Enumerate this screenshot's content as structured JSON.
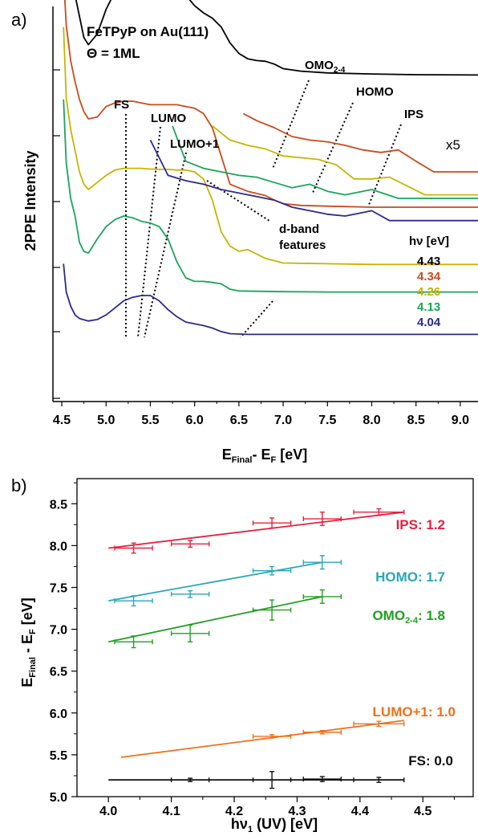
{
  "panel_a": {
    "panel_label": "a)",
    "sample_line1": "FeTPyP on Au(111)",
    "sample_line2": "Θ = 1ML",
    "ylabel": "2PPE Intensity",
    "xlabel_main": "E",
    "xlabel_sub1": "Final",
    "xlabel_mid": "- E",
    "xlabel_sub2": "F",
    "xlabel_unit": " [eV]",
    "x_ticks": [
      "4.5",
      "5.0",
      "5.5",
      "6.0",
      "6.5",
      "7.0",
      "7.5",
      "8.0",
      "8.5",
      "9.0"
    ],
    "labels": {
      "fs": "FS",
      "lumo": "LUMO",
      "lumo1": "LUMO+1",
      "omo_main": "OMO",
      "omo_sub": "2-4",
      "homo": "HOMO",
      "ips": "IPS",
      "x5": "x5",
      "dband1": "d-band",
      "dband2": "features"
    },
    "legend_title": "hν [eV]",
    "legend": [
      {
        "label": "4.43",
        "color": "#000000"
      },
      {
        "label": "4.34",
        "color": "#cc4a1a"
      },
      {
        "label": "4.26",
        "color": "#c8b400"
      },
      {
        "label": "4.13",
        "color": "#1aa55a"
      },
      {
        "label": "4.04",
        "color": "#2a2a8c"
      }
    ]
  },
  "chart_data": [
    {
      "type": "line",
      "panel": "a",
      "xlabel": "E_Final - E_F [eV]",
      "ylabel": "2PPE Intensity",
      "xlim": [
        4.4,
        9.2
      ],
      "series": [
        {
          "name": "4.43",
          "color": "#000000",
          "offset": 4,
          "x": [
            4.52,
            4.55,
            4.6,
            4.65,
            4.7,
            4.75,
            4.8,
            4.9,
            5.0,
            5.1,
            5.2,
            5.3,
            5.4,
            5.5,
            5.6,
            5.7,
            5.8,
            5.9,
            6.0,
            6.1,
            6.2,
            6.3,
            6.4,
            6.5,
            6.6,
            6.7,
            6.8,
            6.9,
            7.0,
            7.2,
            7.5,
            8.0,
            8.5,
            9.2
          ],
          "y": [
            3.6,
            4.2,
            3.0,
            2.2,
            1.6,
            1.0,
            0.8,
            1.1,
            1.8,
            2.3,
            2.6,
            2.7,
            2.65,
            2.55,
            2.4,
            2.35,
            2.3,
            2.2,
            1.9,
            1.7,
            1.55,
            1.3,
            0.85,
            0.55,
            0.4,
            0.35,
            0.33,
            0.25,
            0.12,
            0.05,
            0.0,
            -0.03,
            -0.05,
            -0.06
          ]
        },
        {
          "name": "4.34",
          "color": "#cc4a1a",
          "offset": 3,
          "x": [
            4.52,
            4.55,
            4.6,
            4.65,
            4.7,
            4.75,
            4.8,
            4.9,
            5.0,
            5.1,
            5.2,
            5.3,
            5.4,
            5.5,
            5.6,
            5.7,
            5.8,
            5.9,
            6.0,
            6.1,
            6.2,
            6.3,
            6.4,
            6.6,
            6.8,
            6.9,
            7.0,
            7.2,
            7.5,
            8.0,
            8.5,
            9.2
          ],
          "y": [
            4.6,
            3.2,
            2.2,
            1.6,
            1.1,
            0.75,
            0.55,
            0.6,
            0.9,
            1.0,
            1.05,
            1.05,
            1.0,
            0.95,
            0.95,
            0.95,
            0.95,
            0.9,
            0.85,
            0.7,
            0.3,
            -0.5,
            -1.3,
            -1.5,
            -1.62,
            -1.75,
            -1.85,
            -1.9,
            -1.92,
            -1.95,
            -1.95,
            -1.95
          ]
        },
        {
          "name": "4.26",
          "color": "#c8b400",
          "offset": 2,
          "x": [
            4.52,
            4.55,
            4.6,
            4.65,
            4.7,
            4.75,
            4.8,
            4.9,
            5.0,
            5.1,
            5.2,
            5.3,
            5.4,
            5.5,
            5.6,
            5.7,
            5.8,
            5.9,
            6.0,
            6.1,
            6.2,
            6.3,
            6.4,
            6.5,
            6.6,
            6.8,
            7.0,
            7.5,
            8.0,
            8.5,
            9.2
          ],
          "y": [
            5.0,
            3.0,
            2.1,
            1.5,
            0.9,
            0.55,
            0.4,
            0.6,
            0.8,
            0.95,
            1.0,
            1.0,
            1.0,
            0.98,
            0.97,
            0.97,
            0.95,
            0.95,
            0.9,
            0.7,
            0.1,
            -0.8,
            -1.2,
            -1.35,
            -1.3,
            -1.55,
            -1.68,
            -1.7,
            -1.72,
            -1.72,
            -1.72
          ]
        },
        {
          "name": "4.13",
          "color": "#1aa55a",
          "offset": 1,
          "x": [
            4.52,
            4.55,
            4.6,
            4.65,
            4.7,
            4.75,
            4.8,
            4.9,
            5.0,
            5.1,
            5.2,
            5.3,
            5.4,
            5.5,
            5.6,
            5.7,
            5.8,
            5.9,
            6.0,
            6.1,
            6.2,
            6.3,
            6.4,
            6.5,
            7.0,
            7.5,
            8.0,
            9.2
          ],
          "y": [
            4.8,
            3.0,
            2.0,
            1.5,
            0.75,
            0.5,
            0.45,
            0.85,
            1.2,
            1.4,
            1.5,
            1.45,
            1.35,
            1.3,
            1.2,
            0.85,
            0.2,
            -0.25,
            -0.35,
            -0.35,
            -0.38,
            -0.42,
            -0.57,
            -0.62,
            -0.64,
            -0.65,
            -0.65,
            -0.65
          ]
        },
        {
          "name": "4.04",
          "color": "#2a2a8c",
          "offset": 0,
          "x": [
            4.52,
            4.55,
            4.6,
            4.65,
            4.7,
            4.8,
            4.9,
            5.0,
            5.1,
            5.2,
            5.3,
            5.4,
            5.5,
            5.6,
            5.7,
            5.8,
            5.9,
            6.0,
            6.1,
            6.2,
            6.3,
            6.4,
            6.6,
            7.0,
            7.5,
            8.0,
            9.2
          ],
          "y": [
            2.0,
            1.2,
            0.8,
            0.55,
            0.45,
            0.38,
            0.42,
            0.55,
            0.75,
            0.95,
            1.05,
            1.1,
            1.1,
            0.95,
            0.7,
            0.5,
            0.35,
            0.3,
            0.25,
            0.18,
            0.08,
            0.02,
            0.0,
            0.0,
            0.0,
            0.0,
            0.0
          ]
        }
      ],
      "inset_series_x5": [
        {
          "name": "4.34",
          "color": "#cc4a1a",
          "x": [
            6.55,
            6.7,
            6.9,
            7.1,
            7.3,
            7.5,
            7.7,
            7.9,
            8.1,
            8.3,
            8.5,
            8.7,
            9.2
          ],
          "y": [
            4.75,
            4.55,
            4.35,
            4.1,
            4.0,
            3.95,
            3.85,
            3.72,
            3.65,
            3.72,
            3.4,
            3.1,
            3.1
          ]
        },
        {
          "name": "4.26",
          "color": "#c8b400",
          "x": [
            6.2,
            6.4,
            6.6,
            6.8,
            7.0,
            7.2,
            7.4,
            7.6,
            7.8,
            8.0,
            8.2,
            8.4,
            8.6,
            9.2
          ],
          "y": [
            4.4,
            4.0,
            3.85,
            3.75,
            3.55,
            3.5,
            3.45,
            3.3,
            2.9,
            2.9,
            2.95,
            2.7,
            2.45,
            2.45
          ]
        },
        {
          "name": "4.13",
          "color": "#1aa55a",
          "x": [
            5.75,
            5.9,
            6.1,
            6.3,
            6.5,
            6.7,
            6.9,
            7.1,
            7.3,
            7.5,
            7.7,
            8.0,
            8.3,
            9.2
          ],
          "y": [
            4.4,
            3.4,
            3.2,
            3.1,
            3.0,
            2.95,
            2.8,
            2.65,
            2.75,
            2.55,
            2.45,
            2.6,
            2.35,
            2.35
          ]
        },
        {
          "name": "4.04",
          "color": "#2a2a8c",
          "x": [
            5.5,
            5.7,
            5.9,
            6.1,
            6.3,
            6.5,
            6.7,
            6.9,
            7.1,
            7.3,
            7.5,
            7.7,
            7.9,
            8.0,
            8.2,
            9.2
          ],
          "y": [
            4.0,
            3.0,
            2.85,
            2.75,
            2.6,
            2.5,
            2.4,
            2.3,
            2.1,
            2.0,
            1.9,
            1.85,
            1.95,
            2.0,
            1.72,
            1.72
          ]
        }
      ]
    },
    {
      "type": "scatter",
      "panel": "b",
      "panel_label": "b)",
      "xlabel": "hν1 (UV) [eV]",
      "ylabel": "E_Final - E_F [eV]",
      "xlim": [
        3.95,
        4.58
      ],
      "ylim": [
        5.0,
        8.8
      ],
      "x_ticks": [
        "4.0",
        "4.1",
        "4.2",
        "4.3",
        "4.4",
        "4.5"
      ],
      "y_ticks": [
        "5.0",
        "5.5",
        "6.0",
        "6.5",
        "7.0",
        "7.5",
        "8.0",
        "8.5"
      ],
      "series": [
        {
          "name": "IPS",
          "slope_label": "IPS: 1.2",
          "color": "#e8203a",
          "points": [
            {
              "x": 4.04,
              "y": 7.97,
              "xerr": 0.03,
              "yerr": 0.06
            },
            {
              "x": 4.13,
              "y": 8.02,
              "xerr": 0.03,
              "yerr": 0.04
            },
            {
              "x": 4.26,
              "y": 8.27,
              "xerr": 0.03,
              "yerr": 0.06
            },
            {
              "x": 4.34,
              "y": 8.32,
              "xerr": 0.03,
              "yerr": 0.08
            },
            {
              "x": 4.43,
              "y": 8.4,
              "xerr": 0.04,
              "yerr": 0.04
            }
          ],
          "fit": [
            [
              4.0,
              7.97
            ],
            [
              4.47,
              8.4
            ]
          ]
        },
        {
          "name": "HOMO",
          "slope_label": "HOMO: 1.7",
          "color": "#2aa6b8",
          "points": [
            {
              "x": 4.04,
              "y": 7.34,
              "xerr": 0.03,
              "yerr": 0.06
            },
            {
              "x": 4.13,
              "y": 7.42,
              "xerr": 0.03,
              "yerr": 0.04
            },
            {
              "x": 4.26,
              "y": 7.7,
              "xerr": 0.03,
              "yerr": 0.05
            },
            {
              "x": 4.34,
              "y": 7.8,
              "xerr": 0.03,
              "yerr": 0.08
            }
          ],
          "fit": [
            [
              4.0,
              7.34
            ],
            [
              4.34,
              7.8
            ]
          ]
        },
        {
          "name": "OMO2-4",
          "slope_label": "OMO2-4: 1.8",
          "color": "#1fa020",
          "points": [
            {
              "x": 4.04,
              "y": 6.85,
              "xerr": 0.03,
              "yerr": 0.07
            },
            {
              "x": 4.13,
              "y": 6.95,
              "xerr": 0.03,
              "yerr": 0.1
            },
            {
              "x": 4.26,
              "y": 7.23,
              "xerr": 0.03,
              "yerr": 0.12
            },
            {
              "x": 4.34,
              "y": 7.39,
              "xerr": 0.03,
              "yerr": 0.08
            }
          ],
          "fit": [
            [
              4.0,
              6.85
            ],
            [
              4.34,
              7.39
            ]
          ]
        },
        {
          "name": "LUMO+1",
          "slope_label": "LUMO+1: 1.0",
          "color": "#f07018",
          "points": [
            {
              "x": 4.26,
              "y": 5.72,
              "xerr": 0.03,
              "yerr": 0.02
            },
            {
              "x": 4.34,
              "y": 5.77,
              "xerr": 0.03,
              "yerr": 0.02
            },
            {
              "x": 4.43,
              "y": 5.87,
              "xerr": 0.04,
              "yerr": 0.03
            }
          ],
          "fit": [
            [
              4.02,
              5.47
            ],
            [
              4.47,
              5.91
            ]
          ]
        },
        {
          "name": "FS",
          "slope_label": "FS: 0.0",
          "color": "#111111",
          "points": [
            {
              "x": 4.13,
              "y": 5.2,
              "xerr": 0.03,
              "yerr": 0.02
            },
            {
              "x": 4.26,
              "y": 5.2,
              "xerr": 0.03,
              "yerr": 0.1
            },
            {
              "x": 4.34,
              "y": 5.21,
              "xerr": 0.03,
              "yerr": 0.03
            },
            {
              "x": 4.43,
              "y": 5.2,
              "xerr": 0.04,
              "yerr": 0.03
            }
          ],
          "fit": [
            [
              4.0,
              5.2
            ],
            [
              4.47,
              5.2
            ]
          ]
        }
      ]
    }
  ]
}
